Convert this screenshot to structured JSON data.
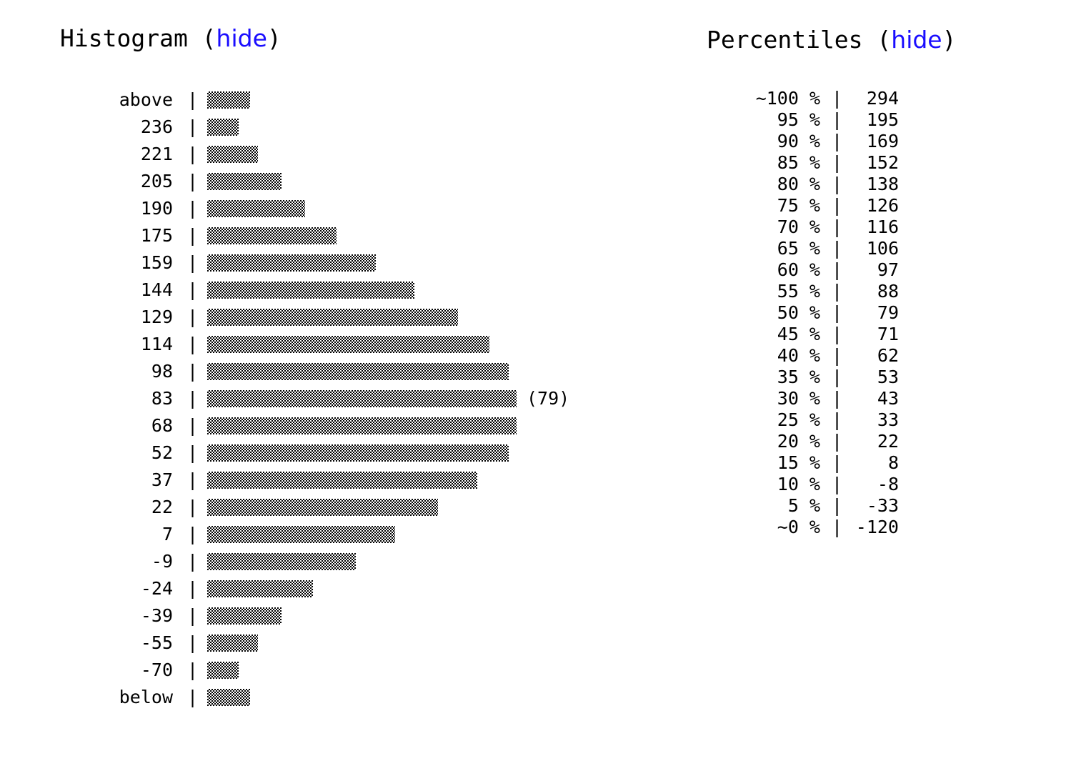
{
  "histogram": {
    "title": "Histogram (",
    "toggle_label": "hide",
    "close_paren": ")"
  },
  "percentiles": {
    "title": "Percentiles (",
    "toggle_label": "hide",
    "close_paren": ")",
    "separator": "|",
    "rows": [
      {
        "label": "~100 %",
        "value": "294"
      },
      {
        "label": "95 %",
        "value": "195"
      },
      {
        "label": "90 %",
        "value": "169"
      },
      {
        "label": "85 %",
        "value": "152"
      },
      {
        "label": "80 %",
        "value": "138"
      },
      {
        "label": "75 %",
        "value": "126"
      },
      {
        "label": "70 %",
        "value": "116"
      },
      {
        "label": "65 %",
        "value": "106"
      },
      {
        "label": "60 %",
        "value": "97"
      },
      {
        "label": "55 %",
        "value": "88"
      },
      {
        "label": "50 %",
        "value": "79"
      },
      {
        "label": "45 %",
        "value": "71"
      },
      {
        "label": "40 %",
        "value": "62"
      },
      {
        "label": "35 %",
        "value": "53"
      },
      {
        "label": "30 %",
        "value": "43"
      },
      {
        "label": "25 %",
        "value": "33"
      },
      {
        "label": "20 %",
        "value": "22"
      },
      {
        "label": "15 %",
        "value": "8"
      },
      {
        "label": "10 %",
        "value": "-8"
      },
      {
        "label": "5 %",
        "value": "-33"
      },
      {
        "label": "~0 %",
        "value": "-120"
      }
    ]
  },
  "chart_data": {
    "type": "bar",
    "orientation": "horizontal",
    "separator": "|",
    "categories": [
      "above",
      "236",
      "221",
      "205",
      "190",
      "175",
      "159",
      "144",
      "129",
      "114",
      "98",
      "83",
      "68",
      "52",
      "37",
      "22",
      "7",
      "-9",
      "-24",
      "-39",
      "-55",
      "-70",
      "below"
    ],
    "values": [
      11,
      8,
      13,
      19,
      25,
      33,
      43,
      53,
      64,
      72,
      77,
      79,
      79,
      77,
      69,
      59,
      48,
      38,
      27,
      19,
      13,
      8,
      11
    ],
    "max_label": "(79)",
    "max_label_index": 11
  }
}
